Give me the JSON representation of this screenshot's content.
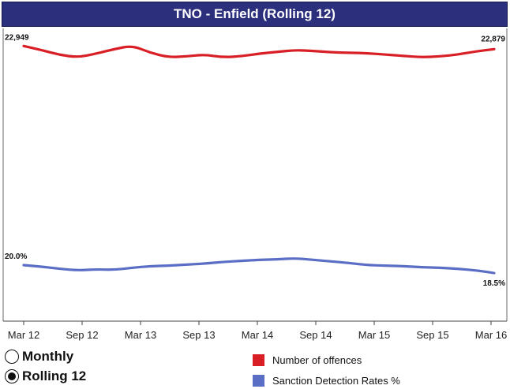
{
  "chart_data": {
    "type": "line",
    "title": "TNO - Enfield (Rolling 12)",
    "x_tick_labels": [
      "Mar 12",
      "Sep 12",
      "Mar 13",
      "Sep 13",
      "Mar 14",
      "Sep 14",
      "Mar 15",
      "Sep 15",
      "Mar 16"
    ],
    "series": [
      {
        "name": "Number of offences",
        "color": "#d91f26",
        "start_label": "22,949",
        "end_label": "22,879",
        "values": [
          22949,
          22860,
          22750,
          22700,
          22780,
          22880,
          22960,
          22800,
          22700,
          22720,
          22760,
          22700,
          22720,
          22780,
          22820,
          22860,
          22840,
          22810,
          22800,
          22790,
          22760,
          22730,
          22700,
          22720,
          22760,
          22830,
          22879
        ]
      },
      {
        "name": "Sanction Detection Rates %",
        "color": "#5b6ec5",
        "start_label": "20.0%",
        "end_label": "18.5%",
        "values": [
          20.0,
          19.7,
          19.3,
          19.0,
          19.2,
          19.1,
          19.5,
          19.8,
          19.9,
          20.1,
          20.3,
          20.6,
          20.8,
          21.0,
          21.1,
          21.3,
          21.0,
          20.7,
          20.4,
          20.0,
          19.9,
          19.8,
          19.6,
          19.5,
          19.3,
          19.0,
          18.5
        ]
      }
    ],
    "grid": false
  },
  "controls": {
    "monthly_label": "Monthly",
    "rolling_label": "Rolling 12",
    "selected": "rolling"
  }
}
